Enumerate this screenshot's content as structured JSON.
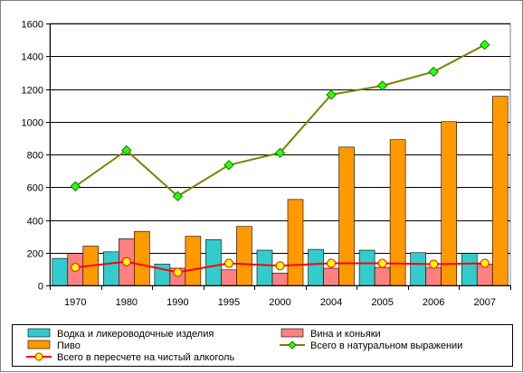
{
  "chart_data": {
    "type": "bar",
    "categories": [
      "1970",
      "1980",
      "1990",
      "1995",
      "2000",
      "2004",
      "2005",
      "2006",
      "2007"
    ],
    "ylim": [
      0,
      1600
    ],
    "yticks": [
      0,
      200,
      400,
      600,
      800,
      1000,
      1200,
      1400,
      1600
    ],
    "grid": true,
    "legend_position": "bottom",
    "bar_series": [
      {
        "name": "Водка и ликероводочные изделия",
        "color": "#33CCCC",
        "values": [
          165,
          205,
          130,
          280,
          215,
          220,
          215,
          200,
          195
        ]
      },
      {
        "name": "Вина и коньяки",
        "color": "#FF8080",
        "values": [
          195,
          285,
          105,
          95,
          75,
          105,
          110,
          110,
          130
        ]
      },
      {
        "name": "Пиво",
        "color": "#FF9900",
        "values": [
          240,
          330,
          300,
          360,
          525,
          845,
          890,
          1000,
          1155
        ]
      }
    ],
    "line_series": [
      {
        "name": "Всего в натуральном выражении",
        "color": "#808000",
        "marker": "diamond",
        "marker_color": "#33FF00",
        "values": [
          605,
          825,
          545,
          735,
          810,
          1165,
          1220,
          1305,
          1470
        ]
      },
      {
        "name": "Всего в пересчете на чистый алкоголь",
        "color": "#FF0000",
        "marker": "circle",
        "marker_color": "#FFFF00",
        "values": [
          110,
          145,
          80,
          135,
          120,
          135,
          135,
          130,
          135
        ]
      }
    ]
  }
}
